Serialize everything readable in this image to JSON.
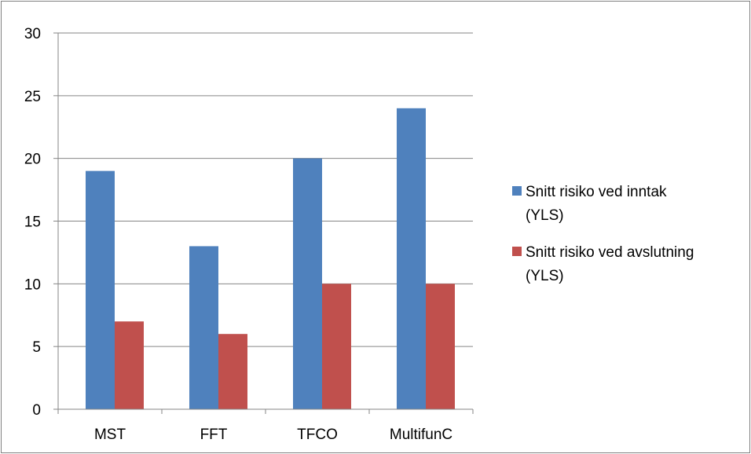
{
  "chart_data": {
    "type": "bar",
    "categories": [
      "MST",
      "FFT",
      "TFCO",
      "MultifunC"
    ],
    "series": [
      {
        "name_lines": [
          "Snitt risiko ved inntak",
          "(YLS)"
        ],
        "color": "#4f81bd",
        "values": [
          19,
          13,
          20,
          24
        ]
      },
      {
        "name_lines": [
          "Snitt risiko ved avslutning",
          "(YLS)"
        ],
        "color": "#c0504d",
        "values": [
          7,
          6,
          10,
          10
        ]
      }
    ],
    "ylim": [
      0,
      30
    ],
    "yticks": [
      0,
      5,
      10,
      15,
      20,
      25,
      30
    ],
    "grid": true,
    "legend_position": "right"
  }
}
